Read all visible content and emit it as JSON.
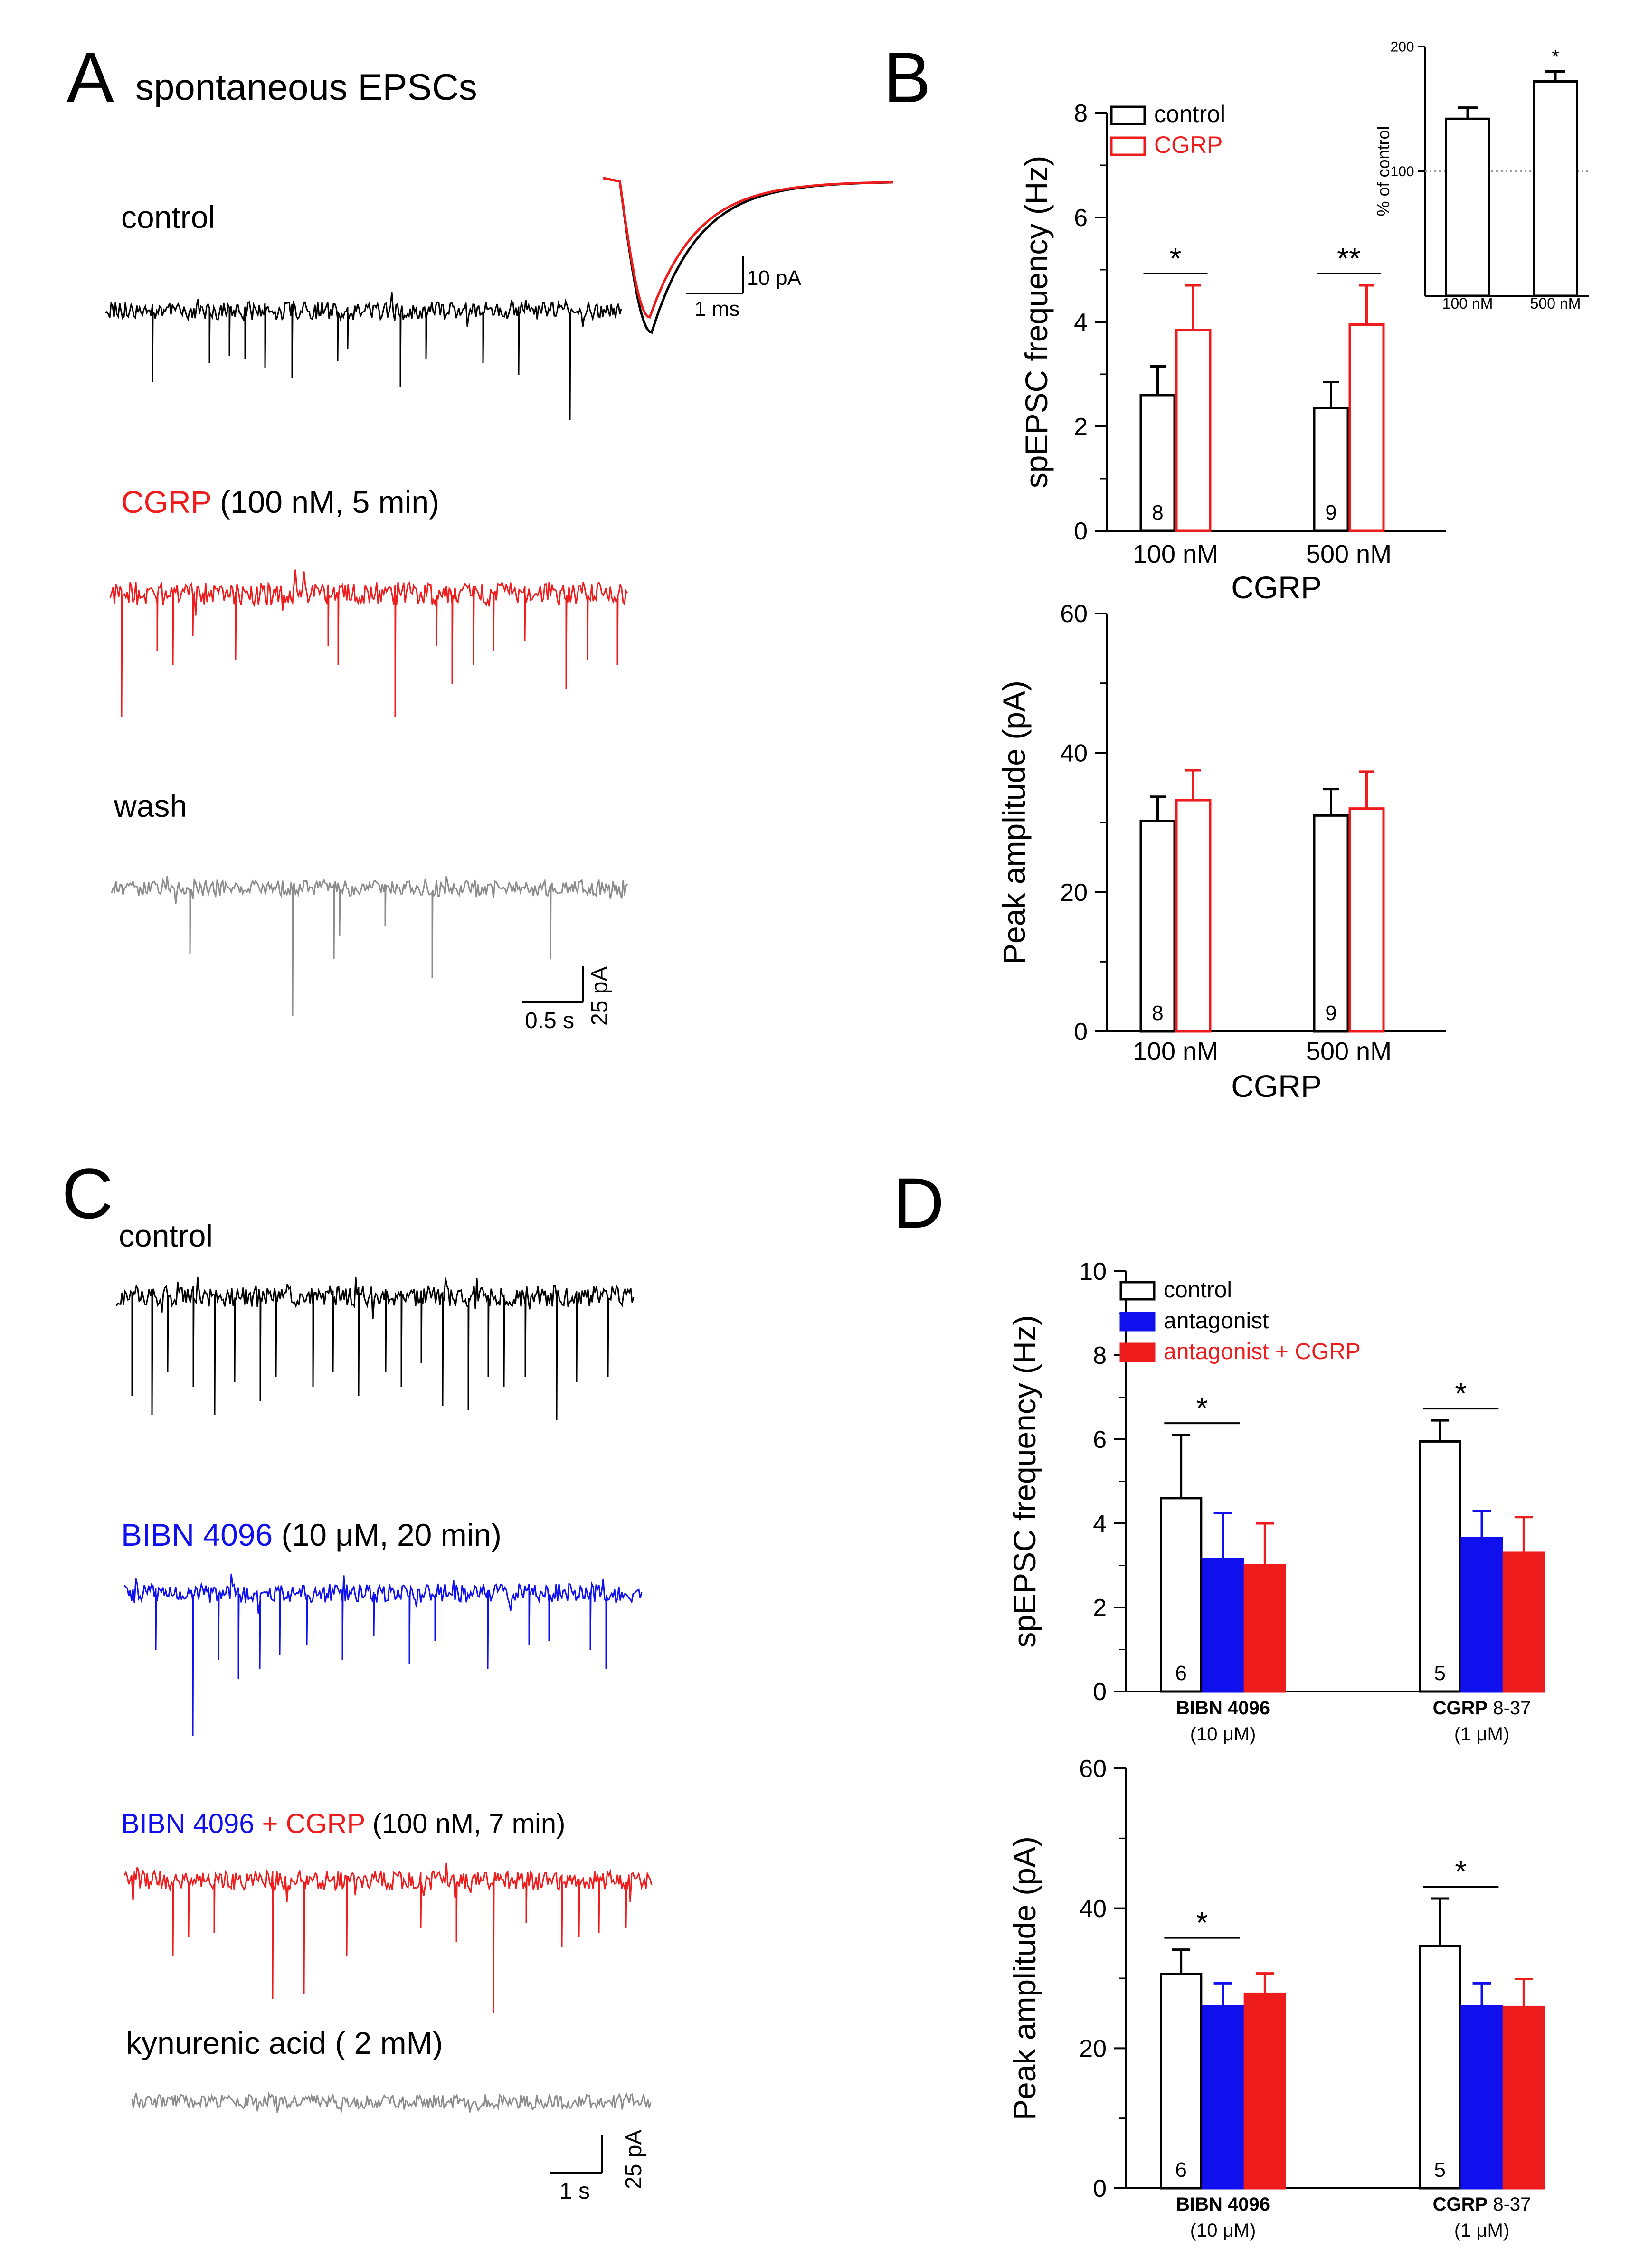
{
  "colors": {
    "control": "#000000",
    "cgrp": "#ee1c1c",
    "wash": "#8c8c8c",
    "antagonist": "#1010ee",
    "grid": "#9a9a9a"
  },
  "panelA": {
    "letter": "A",
    "title": "spontaneous EPSCs",
    "control_label": "control",
    "cgrp_word": "CGRP",
    "cgrp_cond": " (100 nM, 5 min)",
    "wash_label": "wash",
    "inset_scale": {
      "y": "10 pA",
      "x": "1 ms"
    },
    "trace_scale": {
      "x": "0.5 s",
      "y": "25 pA"
    }
  },
  "panelC": {
    "letter": "C",
    "control_label": "control",
    "bibn_word": "BIBN 4096",
    "bibn_cond": " (10 μM, 20 min)",
    "combo_bibn": "BIBN 4096",
    "combo_plus": " + CGRP",
    "combo_cond": " (100 nM, 7 min)",
    "kyn_label": "kynurenic acid ( 2 mM)",
    "scale": {
      "x": "1 s",
      "y": "25 pA"
    }
  },
  "panelB": {
    "letter": "B"
  },
  "panelD": {
    "letter": "D"
  },
  "chart_data": [
    {
      "id": "B-frequency",
      "type": "bar",
      "ylabel": "spEPSC frequency (Hz)",
      "xlabel": "CGRP",
      "categories": [
        "100 nM",
        "500 nM"
      ],
      "ylim": [
        0,
        8
      ],
      "yticks": [
        0,
        2,
        4,
        6,
        8
      ],
      "legend": [
        "control",
        "CGRP"
      ],
      "legend_position": "top-left",
      "series": [
        {
          "name": "control",
          "values": [
            2.6,
            2.35
          ],
          "errors": [
            0.55,
            0.5
          ]
        },
        {
          "name": "CGRP",
          "values": [
            3.85,
            3.95
          ],
          "errors": [
            0.85,
            0.75
          ]
        }
      ],
      "n_labels": [
        "8",
        "9"
      ],
      "significance": [
        "*",
        "**"
      ]
    },
    {
      "id": "B-inset",
      "type": "bar",
      "ylabel": "% of control",
      "categories": [
        "100 nM",
        "500 nM"
      ],
      "ylim": [
        0,
        200
      ],
      "yticks": [
        100,
        200
      ],
      "reference_line": 100,
      "series": [
        {
          "name": "CGRP",
          "values": [
            142,
            172
          ],
          "errors": [
            9,
            8
          ]
        }
      ],
      "significance": [
        "",
        "*"
      ]
    },
    {
      "id": "B-amplitude",
      "type": "bar",
      "ylabel": "Peak amplitude (pA)",
      "xlabel": "CGRP",
      "categories": [
        "100 nM",
        "500 nM"
      ],
      "ylim": [
        0,
        60
      ],
      "yticks": [
        0,
        20,
        40,
        60
      ],
      "series": [
        {
          "name": "control",
          "values": [
            30.2,
            31.0
          ],
          "errors": [
            3.5,
            3.8
          ]
        },
        {
          "name": "CGRP",
          "values": [
            33.2,
            32.0
          ],
          "errors": [
            4.3,
            5.3
          ]
        }
      ],
      "n_labels": [
        "8",
        "9"
      ]
    },
    {
      "id": "D-frequency",
      "type": "bar",
      "ylabel": "spEPSC frequency (Hz)",
      "categories": [
        {
          "bold": "BIBN 4096",
          "rest": "",
          "sub": "(10 μM)"
        },
        {
          "bold": "CGRP",
          "rest": " 8-37",
          "sub": "(1 μM)"
        }
      ],
      "ylim": [
        0,
        10
      ],
      "yticks": [
        0,
        2,
        4,
        6,
        8,
        10
      ],
      "legend": [
        "control",
        "antagonist",
        "antagonist + CGRP"
      ],
      "legend_position": "top-left",
      "series": [
        {
          "name": "control",
          "values": [
            4.6,
            5.95
          ],
          "errors": [
            1.5,
            0.5
          ]
        },
        {
          "name": "antagonist",
          "values": [
            3.15,
            3.65
          ],
          "errors": [
            1.1,
            0.65
          ]
        },
        {
          "name": "antagonist + CGRP",
          "values": [
            3.0,
            3.3
          ],
          "errors": [
            1.0,
            0.85
          ]
        }
      ],
      "n_labels": [
        "6",
        "5"
      ],
      "significance": [
        "*",
        "*"
      ]
    },
    {
      "id": "D-amplitude",
      "type": "bar",
      "ylabel": "Peak amplitude (pA)",
      "categories": [
        {
          "bold": "BIBN 4096",
          "rest": "",
          "sub": "(10 μM)"
        },
        {
          "bold": "CGRP",
          "rest": " 8-37",
          "sub": "(1 μM)"
        }
      ],
      "ylim": [
        0,
        60
      ],
      "yticks": [
        0,
        20,
        40,
        60
      ],
      "series": [
        {
          "name": "control",
          "values": [
            30.6,
            34.6
          ],
          "errors": [
            3.5,
            6.8
          ]
        },
        {
          "name": "antagonist",
          "values": [
            26.0,
            26.0
          ],
          "errors": [
            3.3,
            3.3
          ]
        },
        {
          "name": "antagonist + CGRP",
          "values": [
            27.8,
            25.9
          ],
          "errors": [
            2.9,
            4.0
          ]
        }
      ],
      "n_labels": [
        "6",
        "5"
      ],
      "significance": [
        "*",
        "*"
      ]
    }
  ]
}
